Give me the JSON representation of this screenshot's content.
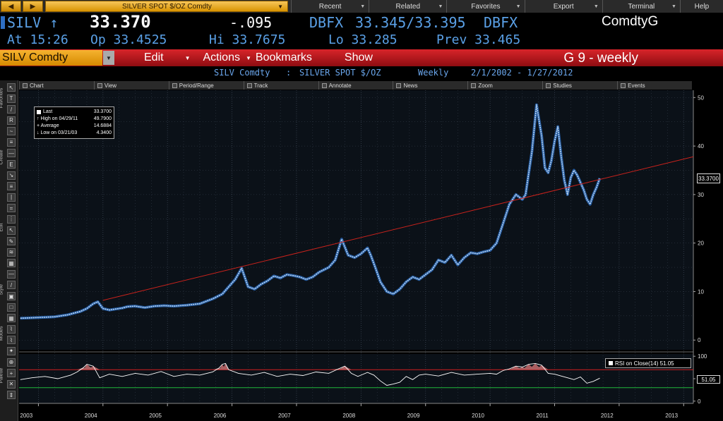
{
  "topbar": {
    "back_label": "◀",
    "forward_label": "▶",
    "security_name": "SILVER SPOT $/OZ Comdty",
    "menu": [
      "Recent",
      "Related",
      "Favorites",
      "Export",
      "Terminal",
      "Help"
    ]
  },
  "quote": {
    "ticker": "SILV ↑",
    "last": "33.370",
    "change": "-.095",
    "source1": "DBFX",
    "bid_ask": "33.345/33.395",
    "source2": "DBFX",
    "market_sector": "ComdtyG",
    "time": "At 15:26",
    "open": "Op 33.4525",
    "high": "Hi 33.7675",
    "low": "Lo 33.285",
    "prev": "Prev 33.465"
  },
  "function_bar": {
    "ticker_box": "SILV Comdty",
    "buttons": [
      "Edit",
      "Actions",
      "Bookmarks",
      "Show"
    ],
    "title": "G 9 - weekly"
  },
  "chart_header": {
    "ticker": "SILV Comdty",
    "separator": ":",
    "name": "SILVER SPOT $/OZ",
    "period": "Weekly",
    "range": "2/1/2002 - 1/27/2012"
  },
  "chart_toolbar": [
    "Chart",
    "View",
    "Period/Range",
    "Track",
    "Annotate",
    "News",
    "Zoom",
    "Studies",
    "Events"
  ],
  "left_toolbar": {
    "sections": [
      "Favorites",
      "Create",
      "Edit",
      "Style",
      "Modes",
      "Palette"
    ],
    "buttons": [
      "↖",
      "T",
      "/",
      "R",
      "~",
      "≡",
      "—",
      "E",
      "↘",
      "≡",
      "|",
      "=",
      "⋮",
      "↖",
      "✎",
      "≋",
      "▦",
      "—",
      "/",
      "▣",
      "□",
      "▦",
      "⌇",
      "⌇",
      "✦",
      "⊕",
      "+",
      "✕",
      "⇕"
    ]
  },
  "legend": {
    "rows": [
      {
        "label": "Last",
        "value": "33.3700"
      },
      {
        "label": "↑ High on 04/29/11",
        "value": "49.7900"
      },
      {
        "label": "+ Average",
        "value": "14.6884"
      },
      {
        "label": "↓ Low on 03/21/03",
        "value": "4.3400"
      }
    ]
  },
  "rsi_legend": "RSI on Close(14) 51.05",
  "last_marker": "33.3700",
  "rsi_marker": "51.05",
  "chart_data": [
    {
      "type": "line",
      "title": "",
      "xlabel": "",
      "ylabel": "",
      "x_ticks": [
        "2003",
        "2004",
        "2005",
        "2006",
        "2007",
        "2008",
        "2009",
        "2010",
        "2011",
        "2012",
        "2013"
      ],
      "x_tick_values": [
        2003,
        2004,
        2005,
        2006,
        2007,
        2008,
        2009,
        2010,
        2011,
        2012,
        2013
      ],
      "xlim": [
        2002.7,
        2013.15
      ],
      "y_ticks": [
        "0",
        "10",
        "20",
        "30",
        "40",
        "50"
      ],
      "ylim": [
        -2,
        51.5
      ],
      "grid": true,
      "series": [
        {
          "x": [
            2002.72,
            2002.9,
            2003.1,
            2003.25,
            2003.45,
            2003.65,
            2003.75,
            2003.85,
            2003.92,
            2004.0,
            2004.1,
            2004.2,
            2004.3,
            2004.38,
            2004.5,
            2004.65,
            2004.8,
            2004.95,
            2005.1,
            2005.3,
            2005.5,
            2005.7,
            2005.85,
            2005.95,
            2006.05,
            2006.15,
            2006.25,
            2006.35,
            2006.45,
            2006.55,
            2006.65,
            2006.75,
            2006.85,
            2006.95,
            2007.05,
            2007.15,
            2007.25,
            2007.35,
            2007.5,
            2007.6,
            2007.7,
            2007.8,
            2007.9,
            2008.0,
            2008.1,
            2008.15,
            2008.22,
            2008.3,
            2008.4,
            2008.5,
            2008.6,
            2008.7,
            2008.8,
            2008.9,
            2009.0,
            2009.1,
            2009.2,
            2009.3,
            2009.4,
            2009.5,
            2009.6,
            2009.7,
            2009.8,
            2009.9,
            2010.0,
            2010.1,
            2010.2,
            2010.3,
            2010.4,
            2010.5,
            2010.55,
            2010.65,
            2010.72,
            2010.8,
            2010.85,
            2010.9,
            2010.95,
            2011.0,
            2011.05,
            2011.1,
            2011.15,
            2011.2,
            2011.25,
            2011.3,
            2011.35,
            2011.4,
            2011.45,
            2011.5,
            2011.55,
            2011.6,
            2011.65,
            2011.7
          ],
          "values": [
            4.5,
            4.6,
            4.7,
            4.8,
            5.2,
            5.9,
            6.5,
            7.5,
            7.9,
            6.5,
            6.2,
            6.4,
            6.6,
            6.9,
            7.0,
            6.7,
            7.0,
            7.1,
            7.0,
            7.2,
            7.5,
            8.5,
            9.5,
            11.0,
            12.5,
            14.8,
            11.0,
            10.5,
            11.5,
            12.2,
            13.2,
            12.8,
            13.5,
            13.3,
            13.0,
            12.5,
            13.0,
            14.0,
            15.0,
            16.5,
            20.8,
            17.5,
            17.0,
            17.8,
            19.0,
            17.5,
            15.0,
            12.0,
            10.0,
            9.5,
            10.5,
            12.0,
            13.0,
            12.5,
            13.5,
            14.5,
            16.5,
            16.0,
            17.5,
            15.5,
            17.0,
            18.0,
            17.8,
            18.2,
            18.5,
            20.0,
            24.0,
            28.0,
            30.0,
            29.0,
            30.0,
            39.0,
            48.5,
            42.0,
            35.5,
            34.5,
            37.0,
            41.0,
            44.0,
            38.0,
            33.0,
            30.0,
            33.5,
            35.0,
            34.0,
            32.5,
            31.0,
            29.0,
            28.0,
            30.0,
            31.5,
            33.37
          ]
        },
        {
          "x": [
            2004.0,
            2013.15
          ],
          "values": [
            8.2,
            37.8
          ]
        }
      ]
    },
    {
      "type": "line",
      "title": "",
      "y_ticks": [
        "0",
        "50",
        "100"
      ],
      "ylim": [
        -5,
        105
      ],
      "grid": true,
      "series": [
        {
          "x": [
            2002.72,
            2002.9,
            2003.1,
            2003.3,
            2003.5,
            2003.6,
            2003.7,
            2003.75,
            2003.85,
            2003.95,
            2004.1,
            2004.3,
            2004.5,
            2004.7,
            2004.9,
            2005.1,
            2005.3,
            2005.5,
            2005.7,
            2005.8,
            2005.85,
            2005.9,
            2005.95,
            2006.1,
            2006.3,
            2006.5,
            2006.7,
            2006.9,
            2007.1,
            2007.3,
            2007.5,
            2007.65,
            2007.75,
            2007.85,
            2007.95,
            2008.1,
            2008.2,
            2008.3,
            2008.4,
            2008.5,
            2008.6,
            2008.7,
            2008.8,
            2008.9,
            2009.0,
            2009.2,
            2009.4,
            2009.6,
            2009.8,
            2010.0,
            2010.1,
            2010.2,
            2010.3,
            2010.4,
            2010.5,
            2010.6,
            2010.7,
            2010.8,
            2010.9,
            2011.0,
            2011.1,
            2011.2,
            2011.3,
            2011.4,
            2011.5,
            2011.6,
            2011.7
          ],
          "values": [
            48,
            52,
            55,
            50,
            58,
            65,
            75,
            82,
            78,
            52,
            60,
            55,
            62,
            58,
            66,
            55,
            60,
            58,
            65,
            74,
            82,
            84,
            70,
            62,
            58,
            64,
            55,
            60,
            57,
            65,
            62,
            72,
            78,
            62,
            55,
            64,
            58,
            45,
            35,
            38,
            42,
            55,
            48,
            58,
            60,
            56,
            64,
            58,
            60,
            62,
            60,
            68,
            72,
            78,
            76,
            82,
            84,
            80,
            62,
            60,
            56,
            52,
            48,
            54,
            40,
            44,
            51.05
          ]
        },
        {
          "name": "",
          "x": [
            2002.7,
            2013.15
          ],
          "values": [
            70,
            70
          ]
        },
        {
          "name": "",
          "x": [
            2002.7,
            2013.15
          ],
          "values": [
            30,
            30
          ]
        }
      ]
    }
  ],
  "colors": {
    "price": "#b9d4f0",
    "price_shadow": "#2a68b8",
    "trendline": "#c8221c",
    "rsi": "#ffffff",
    "overbought": "#d02020",
    "oversold": "#21b73b",
    "grid": "#3a4452"
  }
}
